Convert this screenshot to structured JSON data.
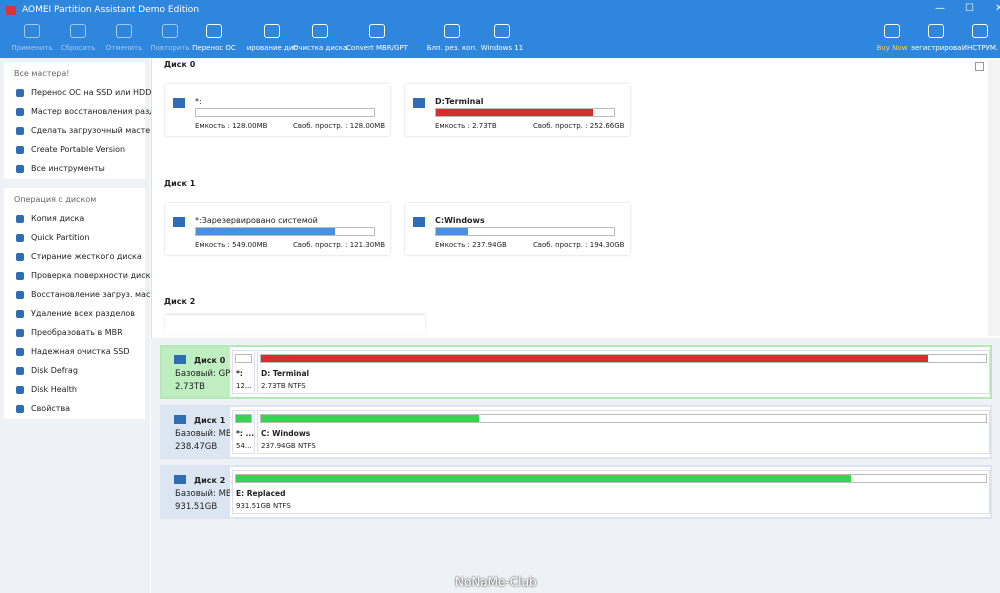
{
  "window": {
    "title": "AOMEI Partition Assistant Demo Edition"
  },
  "toolbar": {
    "items": [
      "Применить",
      "Сбросить",
      "Отменить",
      "Повторить",
      "Перенос ОС",
      "ирование дис",
      "Очистка диска",
      "Convert MBR/GPT",
      "Блп. рез. коп.",
      "Windows 11"
    ],
    "right": [
      "Buy Now",
      "эегистрировa",
      "ИНСТРУМ."
    ]
  },
  "sidebar": {
    "sections": [
      {
        "title": "Все мастера!",
        "items": [
          "Перенос ОС на SSD или HDD",
          "Мастер восстановления раздела",
          "Сделать загрузочный мастер-...",
          "Create Portable Version",
          "Все инструменты"
        ]
      },
      {
        "title": "Операция с диском",
        "items": [
          "Копия диска",
          "Quick Partition",
          "Стирание жесткого диска",
          "Проверка поверхности диска",
          "Восстановление загруз. масте...",
          "Удаление всех разделов",
          "Преобразовать в MBR",
          "Надежная очистка SSD",
          "Disk Defrag",
          "Disk Health",
          "Свойства"
        ]
      }
    ]
  },
  "disk_cards": [
    {
      "label": "Диск 0",
      "partitions": [
        {
          "name": "*:",
          "capacity": "Емкость : 128.00MB",
          "free": "Своб. простр. : 128.00MB"
        },
        {
          "name": "D:Terminal",
          "capacity": "Емкость : 2.73TB",
          "free": "Своб. простр. : 252.66GB"
        }
      ]
    },
    {
      "label": "Диск 1",
      "partitions": [
        {
          "name": "*:Зарезервировано системой",
          "capacity": "Емкость : 549.00MB",
          "free": "Своб. простр. : 121.30MB"
        },
        {
          "name": "C:Windows",
          "capacity": "Емкость : 237.94GB",
          "free": "Своб. простр. : 194.30GB"
        }
      ]
    },
    {
      "label": "Диск 2",
      "partitions": []
    }
  ],
  "disk_map": [
    {
      "name": "Диск 0",
      "type": "Базовый: GPT",
      "size": "2.73TB",
      "partitions": [
        {
          "name": "*:",
          "info": "12..."
        },
        {
          "name": "D: Terminal",
          "info": "2.73TB NTFS"
        }
      ]
    },
    {
      "name": "Диск 1",
      "type": "Базовый: MBR",
      "size": "238.47GB",
      "partitions": [
        {
          "name": "*: ...",
          "info": "54..."
        },
        {
          "name": "C: Windows",
          "info": "237.94GB NTFS"
        }
      ]
    },
    {
      "name": "Диск 2",
      "type": "Базовый: MBR",
      "size": "931.51GB",
      "partitions": [
        {
          "name": "E: Replaced",
          "info": "931.51GB NTFS"
        }
      ]
    }
  ],
  "watermark": "NoNaMe-Club"
}
